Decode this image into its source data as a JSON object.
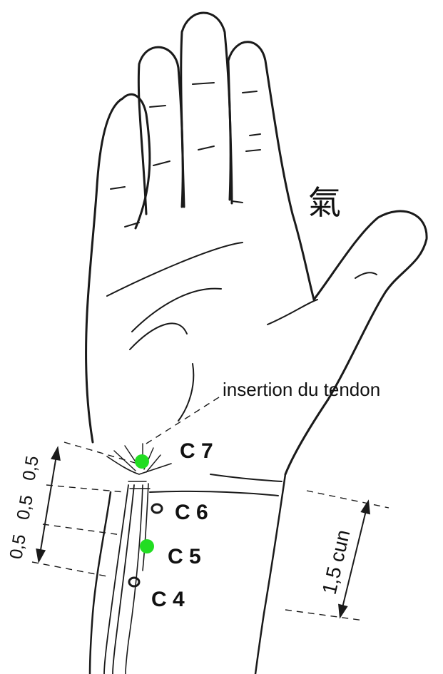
{
  "annotation": "insertion du tendon",
  "points": [
    {
      "label": "C 7",
      "marker": "filled"
    },
    {
      "label": "C 6",
      "marker": "ring"
    },
    {
      "label": "C 5",
      "marker": "filled"
    },
    {
      "label": "C 4",
      "marker": "ring"
    }
  ],
  "left_measure": {
    "segments": [
      "0,5",
      "0,5",
      "0,5"
    ]
  },
  "right_measure": {
    "label": "1,5 cun"
  },
  "glyph": "氣",
  "colors": {
    "ink": "#1a1a1a",
    "highlight": "#22dd22"
  }
}
